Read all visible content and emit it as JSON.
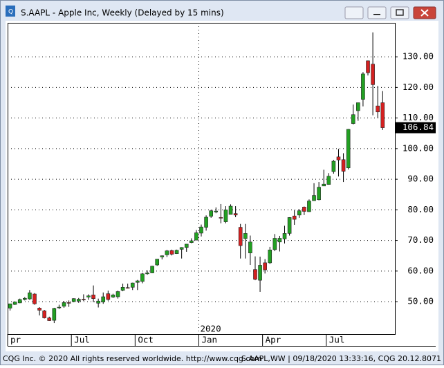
{
  "window_title": "S.AAPL - Apple Inc, Weekly (Delayed by 15 mins)",
  "footer_left": "CQG Inc. © 2020 All rights reserved worldwide. http://www.cqg.com",
  "footer_right": "S.AAPL,WW | 09/18/2020 13:33:16, CQG 20.12.8071",
  "chart_data": {
    "type": "candlestick",
    "up_color": "#22a022",
    "down_color": "#d42020",
    "grid": true,
    "year_label": "2020",
    "categories": [
      null,
      null,
      null,
      null,
      null,
      null,
      null,
      null,
      null,
      null,
      null,
      null,
      null,
      null,
      null,
      null,
      null,
      null,
      null,
      null,
      null,
      null,
      null,
      null,
      null,
      null,
      null,
      null,
      null,
      null,
      null,
      null,
      null,
      null,
      null,
      null,
      null,
      null,
      null,
      null,
      null,
      null,
      null,
      null,
      null,
      null,
      null,
      null,
      null,
      null,
      null,
      null,
      null,
      null,
      null,
      null,
      null,
      null,
      null,
      null,
      null,
      null,
      null,
      null,
      null,
      null,
      null,
      null,
      null,
      null,
      null,
      null,
      null,
      null,
      null,
      null,
      null
    ],
    "open": [
      47.9,
      49.1,
      49.6,
      50.7,
      50.9,
      52.5,
      47.9,
      47.0,
      44.7,
      43.9,
      48.0,
      48.5,
      49.7,
      50.0,
      50.2,
      50.8,
      51.5,
      52.2,
      49.5,
      49.9,
      52.6,
      51.5,
      51.6,
      53.7,
      54.6,
      54.7,
      56.3,
      56.6,
      59.1,
      59.4,
      62.0,
      64.6,
      65.3,
      66.7,
      65.7,
      67.1,
      67.7,
      69.3,
      70.1,
      72.4,
      74.3,
      77.9,
      79.3,
      77.5,
      76.1,
      78.5,
      78.8,
      74.3,
      70.6,
      65.9,
      60.5,
      57.0,
      62.7,
      62.7,
      67.0,
      69.5,
      70.5,
      72.3,
      78.0,
      78.3,
      80.9,
      79.4,
      83.0,
      83.3,
      87.8,
      88.3,
      92.5,
      97.3,
      96.4,
      93.7,
      108.2,
      112.4,
      116.1,
      128.7,
      127.6,
      113.95,
      115.0
    ],
    "high": [
      49.3,
      50.0,
      51.0,
      51.5,
      53.8,
      52.8,
      48.2,
      47.3,
      45.1,
      48.0,
      49.0,
      50.2,
      50.4,
      51.1,
      51.2,
      52.4,
      52.4,
      55.3,
      51.0,
      53.0,
      53.6,
      52.6,
      53.6,
      55.9,
      55.9,
      56.2,
      57.1,
      59.4,
      60.2,
      61.7,
      63.9,
      65.1,
      66.9,
      67.0,
      67.0,
      67.8,
      68.8,
      70.7,
      73.4,
      75.2,
      78.2,
      80.0,
      80.8,
      81.9,
      81.2,
      81.8,
      81.2,
      75.4,
      75.4,
      71.6,
      64.8,
      64.7,
      63.9,
      67.9,
      72.1,
      71.5,
      74.8,
      77.6,
      79.9,
      80.2,
      81.1,
      83.4,
      88.7,
      89.1,
      93.1,
      92.0,
      96.3,
      99.9,
      98.5,
      106.4,
      114.4,
      115.0,
      125.0,
      128.8,
      137.98,
      120.5,
      118.8
    ],
    "low": [
      47.1,
      48.9,
      49.5,
      50.4,
      50.6,
      49.0,
      45.5,
      44.5,
      43.7,
      43.0,
      47.6,
      48.0,
      48.3,
      49.8,
      49.6,
      50.2,
      50.6,
      49.8,
      48.1,
      49.3,
      50.3,
      51.2,
      51.0,
      53.4,
      54.3,
      53.8,
      53.8,
      56.0,
      58.8,
      59.3,
      61.7,
      63.8,
      64.6,
      65.1,
      65.6,
      64.1,
      66.3,
      69.1,
      70.1,
      71.3,
      73.2,
      77.4,
      78.9,
      75.6,
      75.6,
      78.5,
      77.6,
      64.1,
      64.1,
      62.0,
      57.0,
      53.2,
      59.2,
      62.3,
      66.5,
      66.4,
      69.0,
      71.6,
      75.1,
      77.4,
      78.3,
      79.3,
      83.1,
      83.1,
      87.8,
      88.2,
      91.8,
      90.9,
      89.1,
      93.2,
      107.9,
      109.1,
      113.8,
      123.9,
      110.9,
      110.0,
      106.1
    ],
    "close": [
      49.3,
      49.9,
      50.7,
      51.1,
      52.9,
      49.3,
      47.2,
      44.7,
      43.8,
      47.8,
      48.2,
      49.7,
      49.5,
      51.0,
      50.8,
      50.7,
      51.9,
      51.0,
      50.2,
      51.6,
      50.7,
      52.2,
      53.3,
      54.7,
      54.4,
      56.1,
      56.8,
      59.1,
      59.4,
      61.6,
      63.9,
      65.0,
      66.6,
      65.5,
      66.8,
      67.7,
      68.8,
      69.9,
      72.5,
      74.4,
      77.6,
      79.7,
      79.6,
      77.4,
      80.0,
      81.2,
      78.3,
      68.3,
      72.3,
      69.5,
      57.3,
      61.9,
      60.4,
      66.9,
      70.7,
      70.7,
      72.3,
      77.5,
      76.9,
      79.7,
      79.5,
      82.9,
      84.7,
      87.4,
      88.4,
      91.0,
      95.9,
      96.3,
      92.6,
      106.3,
      111.1,
      115.0,
      124.4,
      124.8,
      120.9,
      112.0,
      106.84
    ],
    "xlim": [
      -0.5,
      78.5
    ],
    "xticks": [
      {
        "value": 0,
        "label": "pr"
      },
      {
        "value": 13,
        "label": "Jul"
      },
      {
        "value": 26,
        "label": "Oct"
      },
      {
        "value": 39,
        "label": "Jan"
      },
      {
        "value": 52,
        "label": "Apr"
      },
      {
        "value": 65,
        "label": "Jul"
      }
    ],
    "ylim": [
      39.4,
      141.1
    ],
    "yticks": [
      {
        "value": 50,
        "label": "50.00"
      },
      {
        "value": 60,
        "label": "60.00"
      },
      {
        "value": 70,
        "label": "70.00"
      },
      {
        "value": 80,
        "label": "80.00"
      },
      {
        "value": 90,
        "label": "90.00"
      },
      {
        "value": 100,
        "label": "100.00"
      },
      {
        "value": 110,
        "label": "110.00"
      },
      {
        "value": 120,
        "label": "120.00"
      },
      {
        "value": 130,
        "label": "130.00"
      }
    ]
  }
}
